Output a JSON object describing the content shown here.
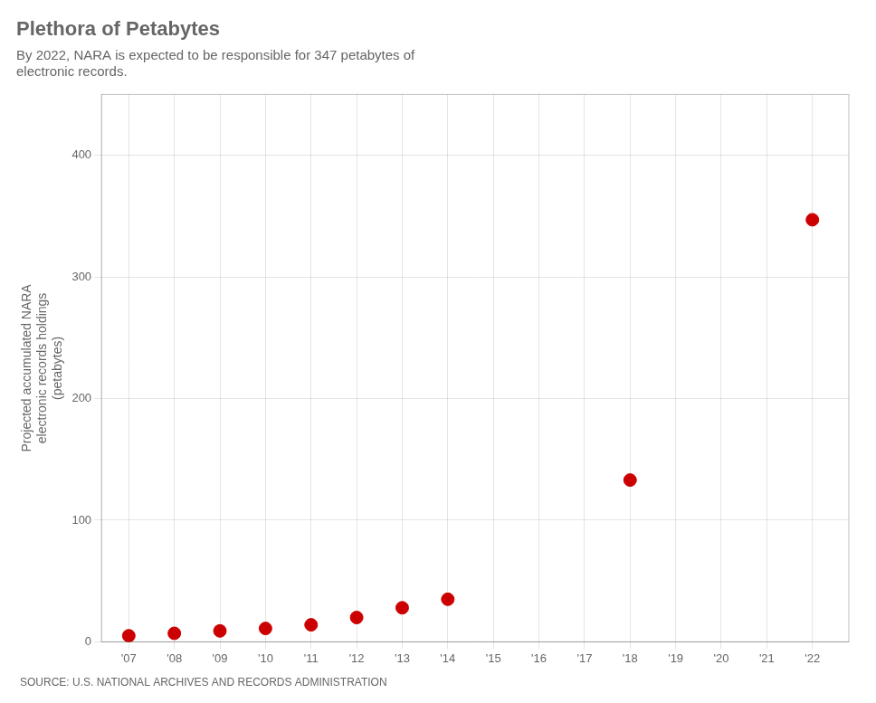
{
  "chart_data": {
    "type": "scatter",
    "title": "Plethora of Petabytes",
    "subtitle": "By 2022, NARA is expected to be responsible for 347 petabytes of\nelectronic records.",
    "annotations": [
      "SOURCE: U.S. NATIONAL ARCHIVES AND RECORDS ADMINISTRATION"
    ],
    "ylabel": [
      "Projected accumulated NARA",
      "electronic records holdings",
      "(petabytes)"
    ],
    "x": [
      2007,
      2008,
      2009,
      2010,
      2011,
      2012,
      2013,
      2014,
      2015,
      2016,
      2017,
      2018,
      2019,
      2020,
      2021,
      2022
    ],
    "values": [
      5,
      7,
      9,
      11,
      14,
      20,
      28,
      35,
      null,
      null,
      null,
      133,
      null,
      null,
      null,
      347
    ],
    "color": "#cc0000",
    "marker": "circle",
    "xlim": [
      2006.4,
      2022.8
    ],
    "xticks": [
      {
        "value": 2007,
        "label": "'07"
      },
      {
        "value": 2008,
        "label": "'08"
      },
      {
        "value": 2009,
        "label": "'09"
      },
      {
        "value": 2010,
        "label": "'10"
      },
      {
        "value": 2011,
        "label": "'11"
      },
      {
        "value": 2012,
        "label": "'12"
      },
      {
        "value": 2013,
        "label": "'13"
      },
      {
        "value": 2014,
        "label": "'14"
      },
      {
        "value": 2015,
        "label": "'15"
      },
      {
        "value": 2016,
        "label": "'16"
      },
      {
        "value": 2017,
        "label": "'17"
      },
      {
        "value": 2018,
        "label": "'18"
      },
      {
        "value": 2019,
        "label": "'19"
      },
      {
        "value": 2020,
        "label": "'20"
      },
      {
        "value": 2021,
        "label": "'21"
      },
      {
        "value": 2022,
        "label": "'22"
      }
    ],
    "ylim": [
      0,
      450
    ],
    "yticks": [
      0,
      100,
      200,
      300,
      400
    ],
    "grid": true
  }
}
